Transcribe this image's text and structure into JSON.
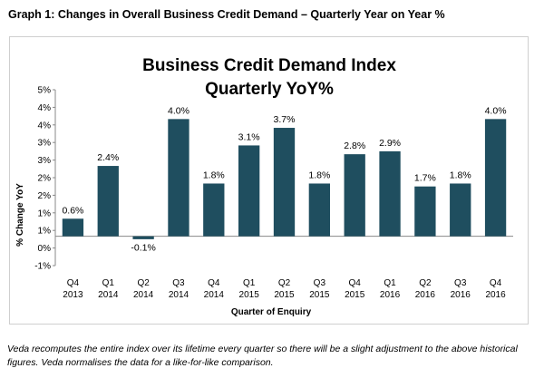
{
  "caption": "Graph 1: Changes in Overall Business Credit Demand – Quarterly Year on Year %",
  "footnote": "Veda recomputes the entire index over its lifetime every quarter so there will be a slight adjustment to the above historical figures. Veda normalises the data for a like-for-like comparison.",
  "colors": {
    "bar": "#1f4e5f",
    "gridline": "#e0e0e0"
  },
  "chart_data": {
    "type": "bar",
    "title": "Business Credit Demand Index",
    "subtitle": "Quarterly YoY%",
    "xlabel": "Quarter of Enquiry",
    "ylabel": "% Change YoY",
    "ylim": [
      -1,
      5
    ],
    "yticks": [
      -1,
      0,
      1,
      2,
      3,
      4,
      5
    ],
    "ytick_labels": [
      "-1%",
      "0%",
      "1%",
      "2%",
      "3%",
      "4%",
      "5%"
    ],
    "ytick_labels_display": [
      "-1%",
      "0%",
      "1%",
      "1%",
      "2%",
      "2%",
      "3%",
      "3%",
      "4%",
      "4%",
      "5%"
    ],
    "grid": false,
    "legend": "none",
    "categories": [
      {
        "quarter": "Q4",
        "year": "2013"
      },
      {
        "quarter": "Q1",
        "year": "2014"
      },
      {
        "quarter": "Q2",
        "year": "2014"
      },
      {
        "quarter": "Q3",
        "year": "2014"
      },
      {
        "quarter": "Q4",
        "year": "2014"
      },
      {
        "quarter": "Q1",
        "year": "2015"
      },
      {
        "quarter": "Q2",
        "year": "2015"
      },
      {
        "quarter": "Q3",
        "year": "2015"
      },
      {
        "quarter": "Q4",
        "year": "2015"
      },
      {
        "quarter": "Q1",
        "year": "2016"
      },
      {
        "quarter": "Q2",
        "year": "2016"
      },
      {
        "quarter": "Q3",
        "year": "2016"
      },
      {
        "quarter": "Q4",
        "year": "2016"
      }
    ],
    "values": [
      0.6,
      2.4,
      -0.1,
      4.0,
      1.8,
      3.1,
      3.7,
      1.8,
      2.8,
      2.9,
      1.7,
      1.8,
      4.0
    ],
    "data_labels": [
      "0.6%",
      "2.4%",
      "-0.1%",
      "4.0%",
      "1.8%",
      "3.1%",
      "3.7%",
      "1.8%",
      "2.8%",
      "2.9%",
      "1.7%",
      "1.8%",
      "4.0%"
    ]
  }
}
